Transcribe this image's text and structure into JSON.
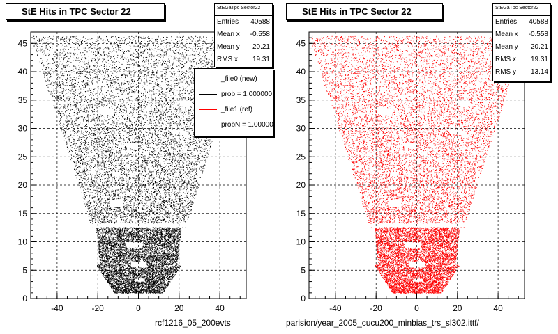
{
  "chart_data": [
    {
      "type": "scatter",
      "title": "StE Hits in TPC Sector 22",
      "xlabel": "",
      "ylabel": "",
      "xlim": [
        -53,
        53
      ],
      "ylim": [
        0,
        47
      ],
      "x_ticks": [
        "-40",
        "-20",
        "0",
        "20",
        "40"
      ],
      "y_ticks": [
        "0",
        "5",
        "10",
        "15",
        "20",
        "25",
        "30",
        "35",
        "40",
        "45"
      ],
      "grid": true,
      "series": [
        {
          "name": "_file0 (new)",
          "color": "#000000"
        }
      ],
      "stats": {
        "name": "StEGaTpc Sector22",
        "rows": [
          {
            "label": "Entries",
            "value": "40588"
          },
          {
            "label": "Mean x",
            "value": "-0.558"
          },
          {
            "label": "Mean y",
            "value": "20.21"
          },
          {
            "label": "RMS x",
            "value": "19.31"
          }
        ]
      },
      "legend": {
        "placement": "top-right",
        "entries": [
          {
            "label": "_file0 (new)",
            "color": "#000000"
          },
          {
            "label": "prob = 1.000000",
            "color": "#000000"
          },
          {
            "label": "_file1 (ref)",
            "color": "#ff0000"
          },
          {
            "label": "probN = 1.000000",
            "color": "#ff0000"
          }
        ]
      },
      "footer": "rcf1216_05_200evts"
    },
    {
      "type": "scatter",
      "title": "StE Hits in TPC Sector 22",
      "xlabel": "",
      "ylabel": "",
      "xlim": [
        -53,
        53
      ],
      "ylim": [
        0,
        47
      ],
      "x_ticks": [
        "-40",
        "-20",
        "0",
        "20",
        "40"
      ],
      "y_ticks": [
        "0",
        "5",
        "10",
        "15",
        "20",
        "25",
        "30",
        "35",
        "40",
        "45"
      ],
      "grid": true,
      "series": [
        {
          "name": "_file1 (ref)",
          "color": "#ff0000"
        }
      ],
      "stats": {
        "name": "StEGaTpc Sector22",
        "rows": [
          {
            "label": "Entries",
            "value": "40588"
          },
          {
            "label": "Mean x",
            "value": "-0.558"
          },
          {
            "label": "Mean y",
            "value": "20.21"
          },
          {
            "label": "RMS x",
            "value": "19.31"
          },
          {
            "label": "RMS y",
            "value": "13.14"
          }
        ]
      },
      "footer": "parision/year_2005_cucu200_minbias_trs_sl302.ittf/"
    }
  ]
}
